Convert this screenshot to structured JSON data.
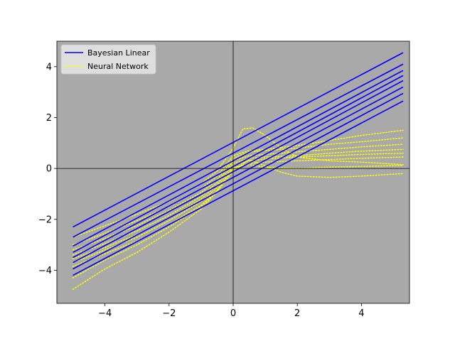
{
  "chart_data": {
    "type": "line",
    "title": "",
    "xlabel": "",
    "ylabel": "",
    "xlim": [
      -5.5,
      5.5
    ],
    "ylim": [
      -5.3,
      5.0
    ],
    "xticks": [
      -4,
      -2,
      0,
      2,
      4
    ],
    "yticks": [
      -4,
      -2,
      0,
      2,
      4
    ],
    "xtick_labels": [
      "−4",
      "−2",
      "0",
      "2",
      "4"
    ],
    "ytick_labels": [
      "−4",
      "−2",
      "0",
      "2",
      "4"
    ],
    "background": "#a9a9a9",
    "axis_lines": {
      "x": 0,
      "y": 0
    },
    "grid": false,
    "legend_position": "top-left",
    "legend": [
      {
        "label": "Bayesian Linear",
        "color": "#0000ff",
        "style": "solid"
      },
      {
        "label": "Neural Network",
        "color": "#ffff00",
        "style": "dotted"
      }
    ],
    "bayesian_linear": {
      "color": "#0000ff",
      "lines": [
        {
          "x": [
            -5,
            5.3
          ],
          "y": [
            -2.3,
            4.55
          ]
        },
        {
          "x": [
            -5,
            5.3
          ],
          "y": [
            -2.7,
            4.1
          ]
        },
        {
          "x": [
            -5,
            5.3
          ],
          "y": [
            -3.05,
            3.85
          ]
        },
        {
          "x": [
            -5,
            5.3
          ],
          "y": [
            -3.3,
            3.65
          ]
        },
        {
          "x": [
            -5,
            5.3
          ],
          "y": [
            -3.5,
            3.45
          ]
        },
        {
          "x": [
            -5,
            5.3
          ],
          "y": [
            -3.7,
            3.2
          ]
        },
        {
          "x": [
            -5,
            5.3
          ],
          "y": [
            -3.95,
            2.95
          ]
        },
        {
          "x": [
            -5,
            5.3
          ],
          "y": [
            -4.2,
            2.65
          ]
        }
      ]
    },
    "neural_network": {
      "color": "#ffff00",
      "curves": [
        {
          "x": [
            -5,
            -4,
            -3,
            -2,
            -1,
            -0.5,
            0,
            0.3,
            0.6,
            1,
            1.5,
            2,
            3,
            4,
            5.3
          ],
          "y": [
            -2.7,
            -2.25,
            -1.8,
            -1.3,
            -0.6,
            -0.1,
            0.8,
            1.55,
            1.6,
            1.3,
            0.8,
            0.45,
            0.3,
            0.25,
            0.15
          ]
        },
        {
          "x": [
            -5,
            -4,
            -3,
            -2,
            -1,
            -0.5,
            0,
            0.5,
            1,
            2,
            3,
            4,
            5.3
          ],
          "y": [
            -3.0,
            -2.55,
            -2.05,
            -1.5,
            -0.8,
            -0.3,
            0.5,
            0.7,
            0.75,
            0.9,
            1.1,
            1.3,
            1.5
          ]
        },
        {
          "x": [
            -5,
            -4,
            -3,
            -2,
            -1,
            -0.5,
            0,
            0.5,
            1,
            2,
            3,
            4,
            5.3
          ],
          "y": [
            -3.2,
            -2.75,
            -2.25,
            -1.65,
            -0.95,
            -0.45,
            0.4,
            0.65,
            0.7,
            0.8,
            0.95,
            1.05,
            1.2
          ]
        },
        {
          "x": [
            -5,
            -4,
            -3,
            -2,
            -1,
            -0.5,
            0,
            0.5,
            1,
            2,
            3,
            4,
            5.3
          ],
          "y": [
            -3.4,
            -2.95,
            -2.45,
            -1.85,
            -1.1,
            -0.55,
            0.3,
            0.5,
            0.55,
            0.65,
            0.75,
            0.85,
            0.95
          ]
        },
        {
          "x": [
            -5,
            -4,
            -3,
            -2,
            -1,
            -0.5,
            0,
            0.5,
            1,
            2,
            3,
            4,
            5.3
          ],
          "y": [
            -3.55,
            -3.1,
            -2.6,
            -1.95,
            -1.2,
            -0.65,
            0.2,
            0.4,
            0.45,
            0.5,
            0.6,
            0.68,
            0.75
          ]
        },
        {
          "x": [
            -5,
            -4,
            -3,
            -2,
            -1,
            -0.5,
            0,
            0.5,
            1,
            2,
            3,
            4,
            5.3
          ],
          "y": [
            -3.7,
            -3.2,
            -2.7,
            -2.05,
            -1.3,
            -0.75,
            0.1,
            0.3,
            0.38,
            0.45,
            0.5,
            0.55,
            0.6
          ]
        },
        {
          "x": [
            -5,
            -4,
            -3,
            -2,
            -1,
            -0.5,
            0,
            0.5,
            1,
            2,
            3,
            4,
            5.3
          ],
          "y": [
            -3.85,
            -3.35,
            -2.85,
            -2.2,
            -1.45,
            -0.85,
            0.0,
            0.2,
            0.25,
            0.3,
            0.35,
            0.4,
            0.45
          ]
        },
        {
          "x": [
            -5,
            -4,
            -3,
            -2,
            -1,
            -0.5,
            0,
            0.5,
            1,
            1.5,
            2,
            3,
            4,
            5.3
          ],
          "y": [
            -4.3,
            -3.6,
            -3.0,
            -2.3,
            -1.5,
            -0.9,
            -0.1,
            0.35,
            0.1,
            -0.15,
            -0.3,
            -0.35,
            -0.3,
            -0.2
          ]
        },
        {
          "x": [
            -5,
            -4,
            -3,
            -2,
            -1,
            -0.5,
            0,
            0.5,
            1,
            2,
            3,
            4,
            5.3
          ],
          "y": [
            -4.75,
            -3.95,
            -3.3,
            -2.5,
            -1.6,
            -0.9,
            0.05,
            0.15,
            0.05,
            0.0,
            0.05,
            0.08,
            0.12
          ]
        }
      ]
    }
  }
}
